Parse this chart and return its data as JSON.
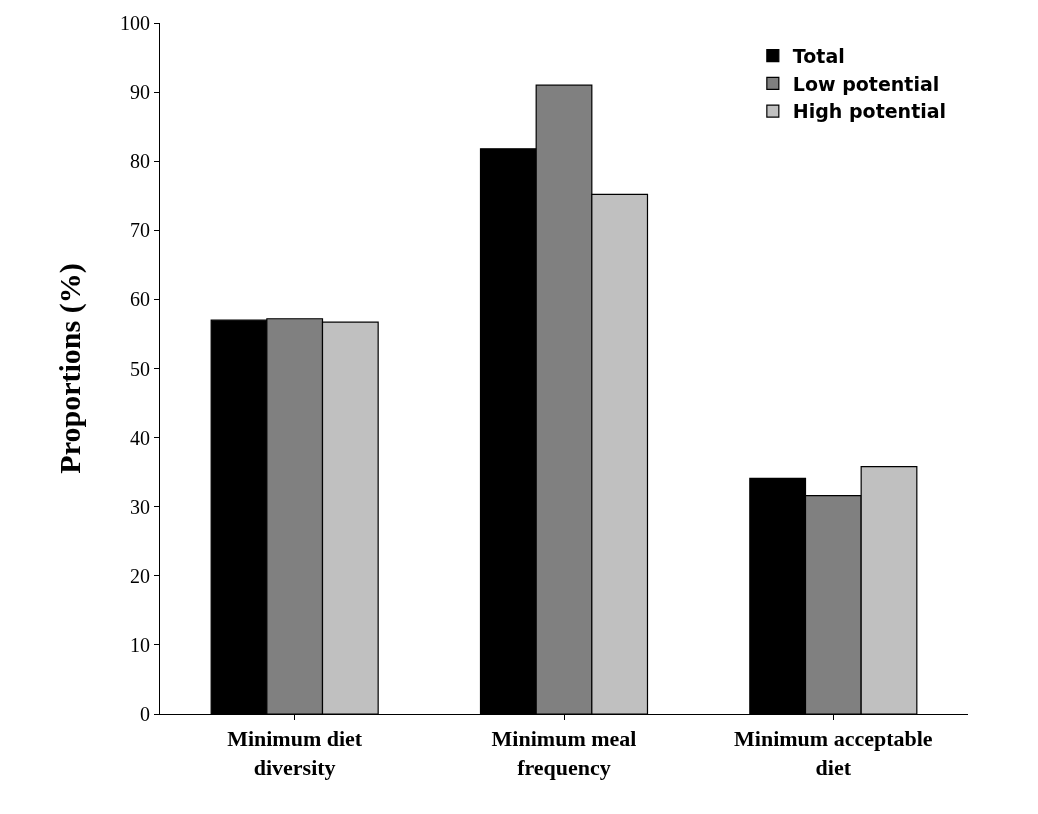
{
  "chart_data": {
    "type": "bar",
    "ylabel": "Proportions (%)",
    "categories": [
      "Minimum diet diversity",
      "Minimum meal frequency",
      "Minimum acceptable diet"
    ],
    "series": [
      {
        "name": "Total",
        "color": "#000000",
        "values": [
          57.0,
          81.8,
          34.1
        ]
      },
      {
        "name": "Low potential",
        "color": "#808080",
        "values": [
          57.2,
          91.0,
          31.6
        ]
      },
      {
        "name": "High potential",
        "color": "#c0c0c0",
        "values": [
          56.7,
          75.2,
          35.8
        ]
      }
    ],
    "ylim": [
      0,
      100
    ],
    "yticks": [
      0,
      10,
      20,
      30,
      40,
      50,
      60,
      70,
      80,
      90,
      100
    ],
    "grid": false,
    "legend": "top right"
  }
}
